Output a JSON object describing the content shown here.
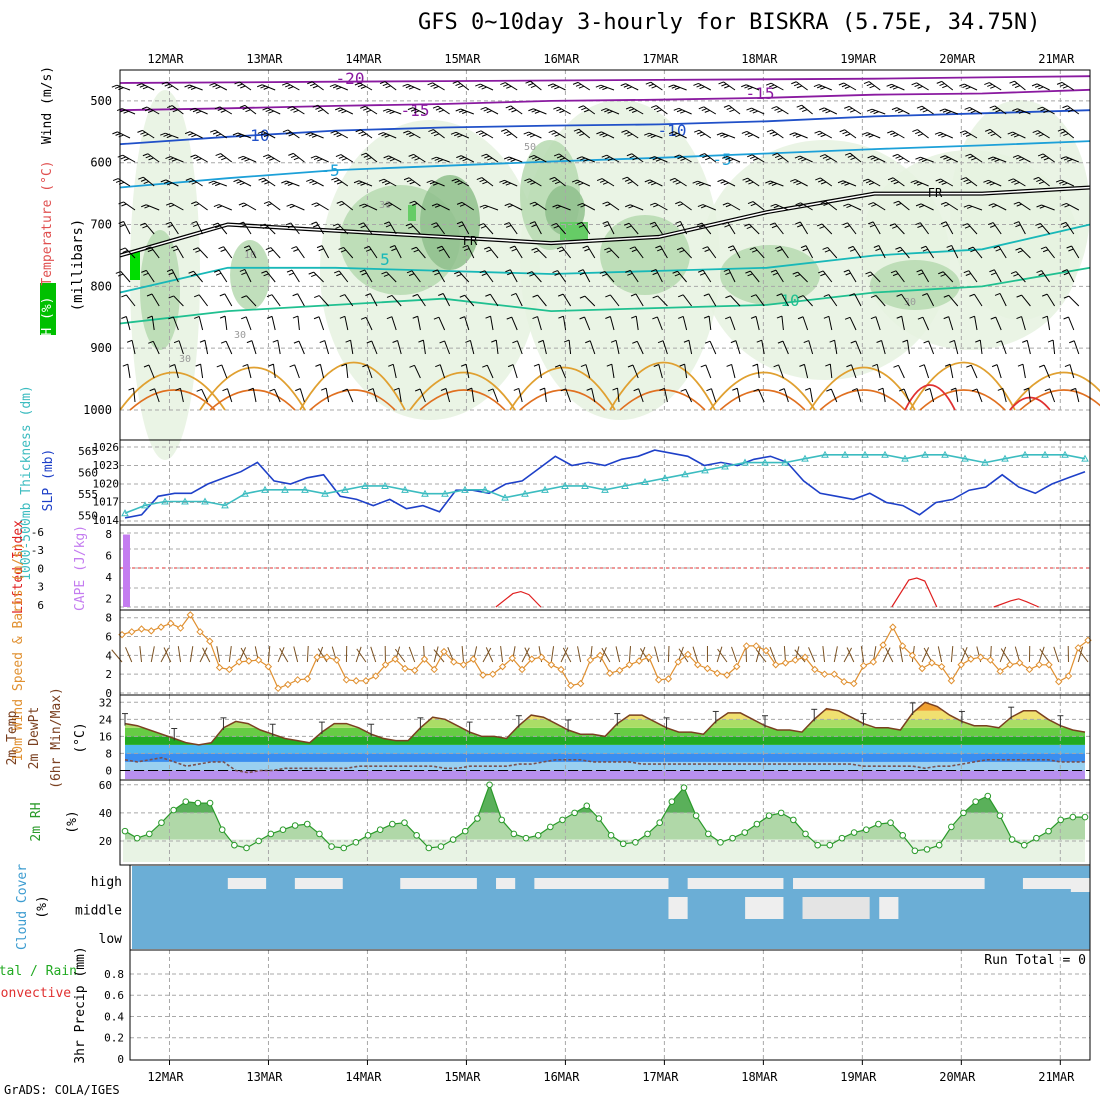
{
  "title": "GFS 0~10day 3-hourly for BISKRA (5.75E, 34.75N)",
  "credit": "GrADS: COLA/IGES",
  "colors": {
    "rh_light": "#e6f2e0",
    "rh_mid": "#b6d9b0",
    "rh_dark": "#8fbf8c",
    "rh_green": "#66cc66",
    "slp": "#1e40c8",
    "thickness": "#3cbcc0",
    "cape": "#c47cf0",
    "lifted": "#e02020",
    "wind10": "#e09030",
    "cloud": "#6baed6",
    "rh2m": "#2a9a2a"
  },
  "chart_data": [
    {
      "type": "area",
      "id": "upper_air",
      "ylabel_parts": [
        "RH (%)",
        "Temperature (°C)",
        "Wind (m/s)"
      ],
      "ylabel_units": "(millibars)",
      "ylim": [
        1000,
        450
      ],
      "yticks": [
        500,
        600,
        700,
        800,
        900,
        1000
      ],
      "date_labels_top": [
        "12MAR",
        "13MAR",
        "14MAR",
        "15MAR",
        "16MAR",
        "17MAR",
        "18MAR",
        "19MAR",
        "20MAR",
        "21MAR"
      ],
      "isotherm_labels": [
        "-20",
        "-15",
        "-15",
        "-10",
        "-10",
        "-5",
        "-5",
        "5",
        "10",
        "FR",
        "FR"
      ],
      "rh_labels": [
        "50",
        "30",
        "30",
        "30",
        "30",
        "10"
      ],
      "isotherms": [
        {
          "t": -20,
          "p": [
            471,
            470,
            469,
            468,
            467,
            466,
            465,
            464,
            462,
            460
          ]
        },
        {
          "t": -15,
          "p": [
            515,
            512,
            508,
            505,
            500,
            498,
            495,
            490,
            488,
            482
          ]
        },
        {
          "t": -10,
          "p": [
            570,
            558,
            548,
            543,
            540,
            538,
            533,
            525,
            520,
            515
          ]
        },
        {
          "t": -5,
          "p": [
            640,
            625,
            612,
            605,
            598,
            592,
            585,
            578,
            572,
            565
          ]
        },
        {
          "t": 0,
          "p": [
            750,
            700,
            710,
            720,
            730,
            720,
            680,
            650,
            650,
            640
          ]
        },
        {
          "t": 5,
          "p": [
            810,
            770,
            770,
            775,
            780,
            775,
            770,
            750,
            740,
            700
          ]
        },
        {
          "t": 10,
          "p": [
            860,
            840,
            830,
            820,
            840,
            835,
            830,
            810,
            800,
            770
          ]
        }
      ]
    },
    {
      "type": "line",
      "id": "slp_thickness",
      "ylabel_left": "1000-500mb Thickness (dm)",
      "ylabel_right": "SLP (mb)",
      "left_ticks": [
        "565",
        "560",
        "555",
        "550"
      ],
      "right_ticks": [
        "1026",
        "1023",
        "1020",
        "1017",
        "1014"
      ],
      "series": [
        {
          "name": "SLP",
          "units": "mb",
          "values": [
            1014.5,
            1015,
            1018,
            1018.5,
            1018.5,
            1020,
            1021,
            1022,
            1023.5,
            1020.5,
            1020,
            1021,
            1021.5,
            1018,
            1017.5,
            1016.5,
            1017.5,
            1016,
            1016.5,
            1015.5,
            1019,
            1019,
            1018.5,
            1020,
            1020.5,
            1022.5,
            1024.5,
            1023,
            1023.5,
            1023,
            1024,
            1024.5,
            1025.5,
            1025,
            1024.5,
            1023,
            1023.5,
            1023,
            1024,
            1024.5,
            1023.5,
            1020.5,
            1018.5,
            1018,
            1017.5,
            1018.5,
            1017,
            1016.5,
            1015,
            1017,
            1017.5,
            1019,
            1019.5,
            1021.5,
            1019.5,
            1018.5,
            1020,
            1021,
            1022
          ]
        },
        {
          "name": "Thickness",
          "units": "dm",
          "values": [
            550,
            552,
            553,
            553,
            553,
            552,
            555,
            556,
            556,
            556,
            555,
            556,
            557,
            557,
            556,
            555,
            555,
            556,
            556,
            554,
            555,
            556,
            557,
            557,
            556,
            557,
            558,
            559,
            560,
            561,
            562,
            563,
            563,
            563,
            564,
            565,
            565,
            565,
            565,
            564,
            565,
            565,
            564,
            563,
            564,
            565,
            565,
            565,
            564
          ]
        }
      ]
    },
    {
      "type": "bar",
      "id": "cape_li",
      "ylabel_left": "Lifted Index",
      "ylabel_right": "CAPE (J/kg)",
      "li_ticks": [
        "-6",
        "-3",
        "0",
        "3",
        "6"
      ],
      "cape_ticks": [
        "8",
        "6",
        "4",
        "2"
      ],
      "cape_values": [
        8,
        0,
        0,
        0,
        0,
        0,
        0,
        0,
        0,
        0
      ],
      "li_peaks": [
        {
          "day": 15.55,
          "value": 1.7
        },
        {
          "day": 19.55,
          "value": 3.2
        },
        {
          "day": 20.58,
          "value": 0.9
        }
      ]
    },
    {
      "type": "line",
      "id": "wind10m",
      "ylabel": "10m Wind Speed & Barbs (m/s)",
      "yticks": [
        "8",
        "6",
        "4",
        "2",
        "0"
      ],
      "ylim": [
        0,
        8.5
      ],
      "values": [
        6.2,
        6.5,
        6.8,
        6.6,
        7.0,
        7.4,
        6.9,
        8.3,
        6.5,
        5.5,
        2.7,
        2.5,
        3.3,
        3.4,
        3.5,
        2.8,
        0.5,
        0.9,
        1.4,
        1.5,
        3.8,
        3.8,
        3.5,
        1.4,
        1.3,
        1.3,
        1.8,
        3.0,
        3.6,
        2.6,
        2.4,
        3.6,
        2.5,
        4.4,
        3.3,
        3.0,
        3.6,
        1.9,
        2.0,
        2.8,
        3.7,
        2.5,
        3.6,
        3.8,
        3.0,
        2.5,
        0.8,
        1.0,
        3.5,
        4.0,
        2.1,
        2.4,
        3.0,
        3.4,
        3.8,
        1.4,
        1.5,
        3.3,
        4.1,
        3.0,
        2.6,
        2.1,
        1.9,
        2.8,
        5.0,
        5.0,
        4.5,
        3.0,
        3.2,
        3.5,
        3.8,
        2.5,
        2.0,
        2.0,
        1.2,
        1.0,
        2.9,
        3.3,
        5.1,
        7.0,
        5.0,
        4.0,
        2.6,
        3.2,
        2.8,
        1.3,
        3.0,
        3.6,
        3.8,
        3.5,
        2.3,
        3.0,
        3.2,
        2.5,
        3.0,
        3.0,
        1.2,
        1.8,
        4.8,
        5.6
      ]
    },
    {
      "type": "area",
      "id": "temp2m",
      "ylabel": "2m Temp 2m DewPt (6hr Min/Max) (°C)",
      "yticks": [
        "32",
        "24",
        "16",
        "8",
        "0"
      ],
      "ylim": [
        -4,
        34
      ],
      "temp": [
        22,
        21,
        19,
        17,
        15,
        13,
        12,
        13,
        20,
        23,
        22,
        19,
        17,
        15,
        14,
        13,
        18,
        22,
        22,
        20,
        17,
        15,
        14,
        14,
        20,
        25,
        24,
        21,
        18,
        16,
        16,
        15,
        21,
        26,
        25,
        22,
        19,
        17,
        17,
        16,
        22,
        26,
        26,
        23,
        20,
        18,
        18,
        17,
        23,
        27,
        27,
        24,
        21,
        19,
        19,
        18,
        24,
        29,
        28,
        25,
        22,
        20,
        20,
        19,
        27,
        32,
        30,
        26,
        23,
        21,
        21,
        20,
        25,
        28,
        28,
        24,
        21,
        19,
        18
      ],
      "dewpoint": [
        5,
        4,
        5,
        6,
        4,
        2,
        3,
        4,
        4,
        0,
        -1,
        0,
        0,
        1,
        1,
        1,
        1,
        1,
        1,
        2,
        2,
        2,
        2,
        2,
        2,
        2,
        1,
        1,
        2,
        2,
        2,
        2,
        3,
        3,
        4,
        5,
        5,
        5,
        4,
        4,
        4,
        4,
        3,
        3,
        3,
        3,
        3,
        3,
        3,
        3,
        3,
        3,
        3,
        3,
        3,
        3,
        3,
        3,
        3,
        3,
        2,
        2,
        2,
        2,
        2,
        1,
        2,
        2,
        3,
        4,
        5,
        5,
        5,
        5,
        5,
        5,
        4,
        4,
        4
      ]
    },
    {
      "type": "area",
      "id": "rh2m",
      "ylabel": "2m RH (%)",
      "yticks": [
        "60",
        "40",
        "20"
      ],
      "ylim": [
        5,
        62
      ],
      "values": [
        27,
        22,
        25,
        33,
        42,
        48,
        47,
        47,
        28,
        17,
        15,
        20,
        25,
        28,
        31,
        32,
        25,
        16,
        15,
        19,
        24,
        28,
        32,
        33,
        24,
        15,
        16,
        21,
        27,
        36,
        60,
        35,
        25,
        22,
        24,
        30,
        35,
        40,
        45,
        36,
        24,
        18,
        19,
        25,
        33,
        48,
        58,
        38,
        25,
        19,
        22,
        26,
        32,
        38,
        40,
        35,
        25,
        17,
        17,
        22,
        26,
        28,
        32,
        33,
        24,
        13,
        14,
        17,
        30,
        40,
        48,
        52,
        38,
        21,
        17,
        22,
        27,
        35,
        37,
        37
      ]
    },
    {
      "type": "heatmap",
      "id": "cloud",
      "ylabel": "Cloud Cover (%)",
      "layers": [
        "high",
        "middle",
        "low"
      ],
      "clear_high": [
        [
          0.1,
          0.04
        ],
        [
          0.17,
          0.05
        ],
        [
          0.28,
          0.08
        ],
        [
          0.38,
          0.02
        ],
        [
          0.42,
          0.06
        ],
        [
          0.46,
          0.08
        ],
        [
          0.49,
          0.07
        ],
        [
          0.58,
          0.05
        ],
        [
          0.62,
          0.06
        ],
        [
          0.69,
          0.09
        ],
        [
          0.74,
          0.05
        ],
        [
          0.77,
          0.12
        ],
        [
          0.93,
          0.06
        ]
      ],
      "clear_mid": [
        [
          0.56,
          0.02
        ],
        [
          0.64,
          0.04
        ],
        [
          0.7,
          0.05
        ],
        [
          0.78,
          0.02
        ]
      ]
    },
    {
      "type": "bar",
      "id": "precip",
      "ylabel_left": "Total / Rain Convective",
      "ylabel": "3hr Precip (mm)",
      "yticks": [
        "0.8",
        "0.6",
        "0.4",
        "0.2",
        "0"
      ],
      "ylim": [
        0,
        0.95
      ],
      "run_total": "Run Total = 0",
      "values": [
        0,
        0,
        0,
        0,
        0,
        0,
        0,
        0,
        0,
        0
      ]
    }
  ],
  "date_labels_bottom": [
    "12MAR",
    "13MAR",
    "14MAR",
    "15MAR",
    "16MAR",
    "17MAR",
    "18MAR",
    "19MAR",
    "20MAR",
    "21MAR"
  ]
}
